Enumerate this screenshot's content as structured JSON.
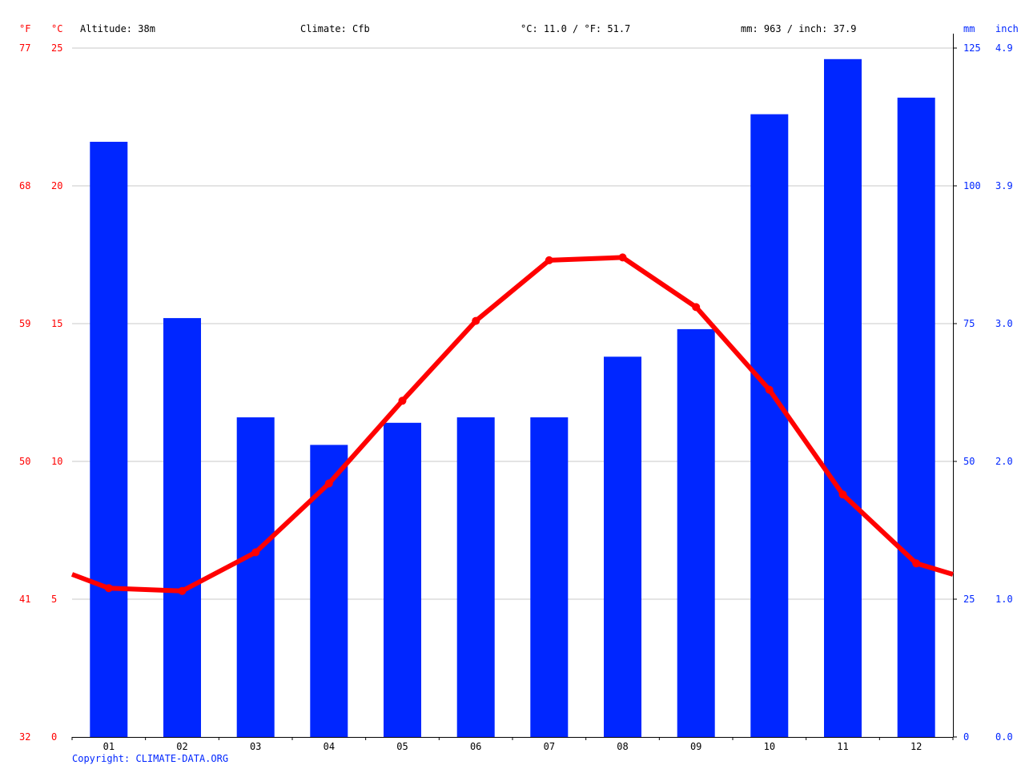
{
  "header": {
    "fahrenheit_unit": "°F",
    "celsius_unit": "°C",
    "altitude": "Altitude: 38m",
    "climate": "Climate: Cfb",
    "avg_temp": "°C: 11.0 / °F: 51.7",
    "total_precip": "mm: 963 / inch: 37.9",
    "mm_unit": "mm",
    "inch_unit": "inch"
  },
  "copyright": "Copyright: CLIMATE-DATA.ORG",
  "colors": {
    "temperature": "#ff0000",
    "precipitation": "#0026ff",
    "grid": "#c8c8c8",
    "axis": "#000000"
  },
  "chart_data": {
    "type": "bar",
    "categories": [
      "01",
      "02",
      "03",
      "04",
      "05",
      "06",
      "07",
      "08",
      "09",
      "10",
      "11",
      "12"
    ],
    "series": [
      {
        "type": "bar",
        "axis": "right",
        "values": [
          108,
          76,
          58,
          53,
          57,
          58,
          58,
          69,
          74,
          113,
          123,
          116
        ]
      },
      {
        "type": "line",
        "axis": "left",
        "values": [
          5.4,
          5.3,
          6.7,
          9.2,
          12.2,
          15.1,
          17.3,
          17.4,
          15.6,
          12.6,
          8.8,
          6.3
        ]
      }
    ],
    "line_edge_values": {
      "start": 5.9,
      "end": 5.9
    },
    "y_left": {
      "range": [
        0,
        25
      ],
      "ticks": [
        {
          "c": "0",
          "f": "32"
        },
        {
          "c": "5",
          "f": "41"
        },
        {
          "c": "10",
          "f": "50"
        },
        {
          "c": "15",
          "f": "59"
        },
        {
          "c": "20",
          "f": "68"
        },
        {
          "c": "25",
          "f": "77"
        }
      ]
    },
    "y_right": {
      "range": [
        0,
        125
      ],
      "ticks": [
        {
          "mm": "0",
          "inch": "0.0"
        },
        {
          "mm": "25",
          "inch": "1.0"
        },
        {
          "mm": "50",
          "inch": "2.0"
        },
        {
          "mm": "75",
          "inch": "3.0"
        },
        {
          "mm": "100",
          "inch": "3.9"
        },
        {
          "mm": "125",
          "inch": "4.9"
        }
      ]
    },
    "grid": true
  }
}
